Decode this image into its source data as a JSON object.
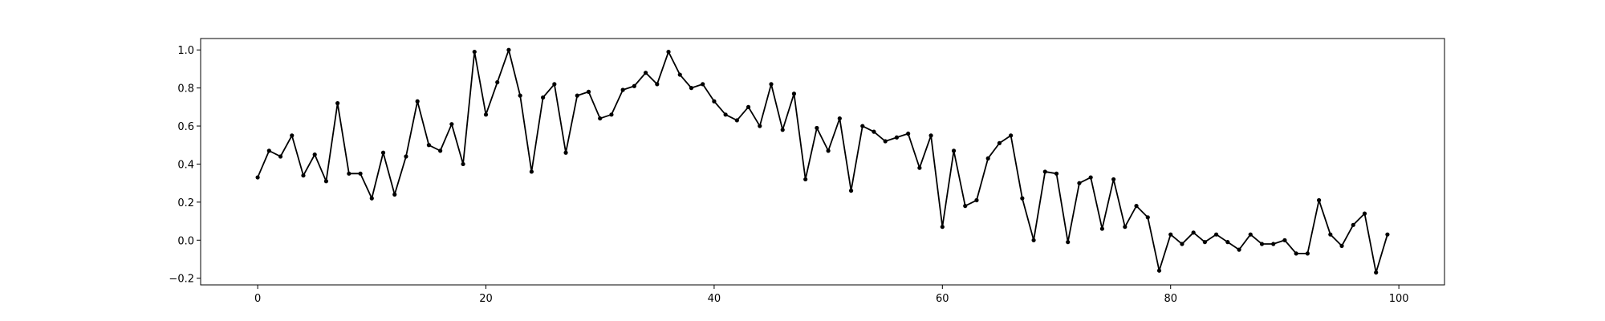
{
  "chart_data": {
    "type": "line",
    "title": "",
    "xlabel": "",
    "ylabel": "",
    "xlim": [
      -5,
      104
    ],
    "ylim": [
      -0.235,
      1.06
    ],
    "xticks": [
      0,
      20,
      40,
      60,
      80,
      100
    ],
    "yticks": [
      -0.2,
      0.0,
      0.2,
      0.4,
      0.6,
      0.8,
      1.0
    ],
    "xtick_labels": [
      "0",
      "20",
      "40",
      "60",
      "80",
      "100"
    ],
    "ytick_labels": [
      "−0.2",
      "0.0",
      "0.2",
      "0.4",
      "0.6",
      "0.8",
      "1.0"
    ],
    "grid": false,
    "marker": "dot",
    "series": [
      {
        "color": "#000000",
        "x": [
          0,
          1,
          2,
          3,
          4,
          5,
          6,
          7,
          8,
          9,
          10,
          11,
          12,
          13,
          14,
          15,
          16,
          17,
          18,
          19,
          20,
          21,
          22,
          23,
          24,
          25,
          26,
          27,
          28,
          29,
          30,
          31,
          32,
          33,
          34,
          35,
          36,
          37,
          38,
          39,
          40,
          41,
          42,
          43,
          44,
          45,
          46,
          47,
          48,
          49,
          50,
          51,
          52,
          53,
          54,
          55,
          56,
          57,
          58,
          59,
          60,
          61,
          62,
          63,
          64,
          65,
          66,
          67,
          68,
          69,
          70,
          71,
          72,
          73,
          74,
          75,
          76,
          77,
          78,
          79,
          80,
          81,
          82,
          83,
          84,
          85,
          86,
          87,
          88,
          89,
          90,
          91,
          92,
          93,
          94,
          95,
          96,
          97,
          98,
          99
        ],
        "y": [
          0.33,
          0.47,
          0.44,
          0.55,
          0.34,
          0.45,
          0.31,
          0.72,
          0.35,
          0.35,
          0.22,
          0.46,
          0.24,
          0.44,
          0.73,
          0.5,
          0.47,
          0.61,
          0.4,
          0.99,
          0.66,
          0.83,
          1.0,
          0.76,
          0.36,
          0.75,
          0.82,
          0.46,
          0.76,
          0.78,
          0.64,
          0.66,
          0.79,
          0.81,
          0.88,
          0.82,
          0.99,
          0.87,
          0.8,
          0.82,
          0.73,
          0.66,
          0.63,
          0.7,
          0.6,
          0.82,
          0.58,
          0.77,
          0.32,
          0.59,
          0.47,
          0.64,
          0.26,
          0.6,
          0.57,
          0.52,
          0.54,
          0.56,
          0.38,
          0.55,
          0.07,
          0.47,
          0.18,
          0.21,
          0.43,
          0.51,
          0.55,
          0.22,
          0.0,
          0.36,
          0.35,
          -0.01,
          0.3,
          0.33,
          0.06,
          0.32,
          0.07,
          0.18,
          0.12,
          -0.16,
          0.03,
          -0.02,
          0.04,
          -0.01,
          0.03,
          -0.01,
          -0.05,
          0.03,
          -0.02,
          -0.02,
          0.0,
          -0.07,
          -0.07,
          0.21,
          0.03,
          -0.03,
          0.08,
          0.14,
          -0.17,
          0.03
        ]
      }
    ]
  }
}
